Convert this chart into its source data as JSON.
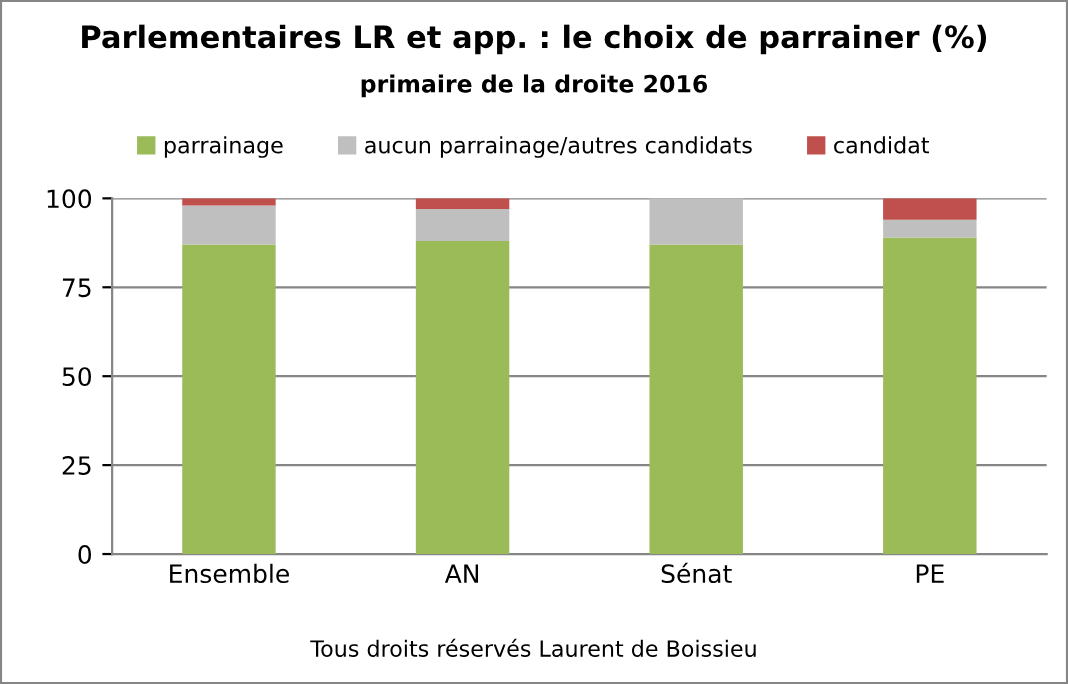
{
  "chart_data": {
    "type": "bar",
    "title": "Parlementaires LR et app. : le choix de parrainer (%)",
    "subtitle": "primaire de la droite 2016",
    "categories": [
      "Ensemble",
      "AN",
      "Sénat",
      "PE"
    ],
    "stacked": true,
    "series": [
      {
        "name": "parrainage",
        "color": "#9bbb59",
        "values": [
          87,
          88,
          87,
          89
        ]
      },
      {
        "name": "aucun parrainage/autres candidats",
        "color": "#bfbfbf",
        "values": [
          11,
          9,
          13,
          5
        ]
      },
      {
        "name": "candidat",
        "color": "#c0504d",
        "values": [
          2,
          3,
          0,
          6
        ]
      }
    ],
    "ylim": [
      0,
      100
    ],
    "yticks": [
      0,
      25,
      50,
      75,
      100
    ],
    "grid": "y",
    "legend": "top",
    "annotations": [
      "Tous droits réservés Laurent de Boissieu"
    ]
  }
}
